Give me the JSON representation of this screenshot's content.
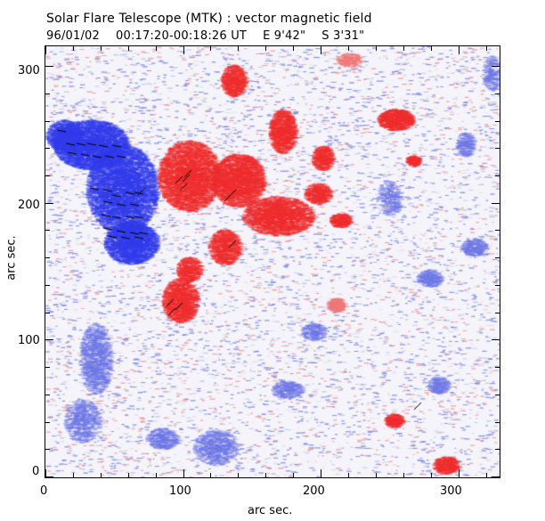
{
  "header": {
    "title": "Solar Flare Telescope (MTK) : vector magnetic field",
    "date": "96/01/02",
    "time_range": "00:17:20-00:18:26 UT",
    "east": "E 9'42\"",
    "south": "S 3'31\""
  },
  "axes": {
    "xlabel": "arc sec.",
    "ylabel": "arc sec.",
    "x_ticks": [
      "0",
      "100",
      "200",
      "300"
    ],
    "y_ticks": [
      "0",
      "100",
      "200",
      "300"
    ],
    "xlim": [
      0,
      330
    ],
    "ylim": [
      0,
      315
    ]
  },
  "colors": {
    "positive": "#ee2222",
    "negative": "#2233ee"
  }
}
